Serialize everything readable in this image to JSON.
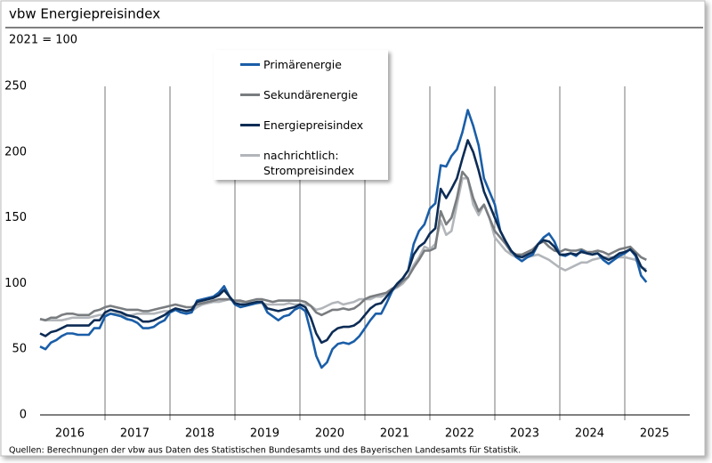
{
  "chart_data": {
    "type": "line",
    "title": "vbw Energiepreisindex",
    "subtitle": "2021 = 100",
    "source": "Quellen: Berechnungen der vbw aus Daten des Statistischen Bundesamts und des Bayerischen Landesamts für Statistik.",
    "categories": [
      null,
      null,
      null,
      null,
      null,
      null,
      "2016",
      null,
      null,
      null,
      null,
      null,
      null,
      null,
      null,
      null,
      null,
      null,
      "2017",
      null,
      null,
      null,
      null,
      null,
      null,
      null,
      null,
      null,
      null,
      null,
      "2018",
      null,
      null,
      null,
      null,
      null,
      null,
      null,
      null,
      null,
      null,
      null,
      "2019",
      null,
      null,
      null,
      null,
      null,
      null,
      null,
      null,
      null,
      null,
      null,
      "2020",
      null,
      null,
      null,
      null,
      null,
      null,
      null,
      null,
      null,
      null,
      null,
      "2021",
      null,
      null,
      null,
      null,
      null,
      null,
      null,
      null,
      null,
      null,
      null,
      "2022",
      null,
      null,
      null,
      null,
      null,
      null,
      null,
      null,
      null,
      null,
      null,
      "2023",
      null,
      null,
      null,
      null,
      null,
      null,
      null,
      null,
      null,
      null,
      null,
      "2024",
      null,
      null,
      null,
      null,
      null,
      null,
      null,
      null,
      null,
      null,
      null,
      "2025",
      null,
      null,
      null,
      null,
      null
    ],
    "ylim": [
      0,
      250
    ],
    "yticks": [
      0,
      50,
      100,
      150,
      200,
      250
    ],
    "series": [
      {
        "name": "Primärenergie",
        "color": "#1a5ea8",
        "values": [
          52,
          50,
          55,
          57,
          60,
          62,
          62,
          61,
          61,
          61,
          66,
          66,
          75,
          77,
          76,
          75,
          73,
          72,
          70,
          66,
          66,
          67,
          70,
          72,
          78,
          80,
          78,
          77,
          78,
          87,
          88,
          89,
          90,
          93,
          98,
          90,
          84,
          82,
          83,
          84,
          85,
          86,
          78,
          75,
          72,
          75,
          76,
          80,
          82,
          79,
          63,
          45,
          36,
          40,
          50,
          54,
          55,
          54,
          56,
          60,
          66,
          72,
          77,
          77,
          85,
          94,
          100,
          104,
          110,
          130,
          140,
          145,
          157,
          161,
          190,
          189,
          197,
          202,
          215,
          232,
          220,
          205,
          180,
          170,
          160,
          140,
          132,
          125,
          120,
          117,
          120,
          122,
          130,
          135,
          138,
          132,
          122,
          121,
          123,
          121,
          125,
          123,
          122,
          123,
          118,
          115,
          118,
          121,
          123,
          126,
          121,
          106,
          101,
          null,
          null,
          null,
          null,
          null,
          null,
          null
        ]
      },
      {
        "name": "Sekundärenergie",
        "color": "#7a7d80",
        "values": [
          73,
          72,
          74,
          74,
          76,
          77,
          77,
          76,
          76,
          76,
          79,
          80,
          82,
          83,
          82,
          81,
          80,
          80,
          80,
          79,
          79,
          80,
          81,
          82,
          83,
          84,
          83,
          82,
          82,
          84,
          85,
          86,
          87,
          88,
          88,
          88,
          87,
          87,
          86,
          87,
          88,
          88,
          87,
          86,
          87,
          87,
          87,
          87,
          87,
          86,
          83,
          78,
          76,
          78,
          80,
          80,
          81,
          80,
          81,
          84,
          88,
          90,
          91,
          92,
          93,
          96,
          98,
          102,
          105,
          112,
          118,
          125,
          125,
          127,
          155,
          145,
          150,
          165,
          185,
          180,
          165,
          155,
          160,
          150,
          140,
          135,
          130,
          124,
          122,
          122,
          124,
          126,
          130,
          132,
          128,
          125,
          124,
          126,
          125,
          125,
          126,
          124,
          124,
          125,
          124,
          122,
          124,
          126,
          127,
          128,
          124,
          120,
          118,
          null,
          null,
          null,
          null,
          null,
          null,
          null
        ]
      },
      {
        "name": "Energiepreisindex",
        "color": "#0c2c55",
        "values": [
          62,
          60,
          63,
          64,
          66,
          68,
          68,
          68,
          68,
          68,
          72,
          72,
          78,
          80,
          79,
          78,
          76,
          75,
          74,
          71,
          71,
          72,
          74,
          76,
          79,
          81,
          80,
          79,
          80,
          86,
          87,
          88,
          89,
          91,
          95,
          90,
          85,
          84,
          84,
          85,
          86,
          86,
          81,
          80,
          79,
          80,
          81,
          82,
          84,
          82,
          74,
          62,
          55,
          57,
          63,
          66,
          67,
          67,
          68,
          71,
          76,
          81,
          84,
          85,
          90,
          95,
          100,
          104,
          110,
          122,
          128,
          131,
          138,
          142,
          172,
          165,
          172,
          180,
          195,
          209,
          200,
          186,
          170,
          160,
          150,
          140,
          132,
          125,
          121,
          120,
          122,
          124,
          130,
          133,
          132,
          128,
          122,
          122,
          123,
          122,
          124,
          123,
          122,
          123,
          120,
          118,
          120,
          123,
          124,
          126,
          122,
          113,
          109,
          null,
          null,
          null,
          null,
          null,
          null,
          null
        ]
      },
      {
        "name": "nachrichtlich: Strompreisindex",
        "color": "#b2b6ba",
        "values": [
          73,
          72,
          72,
          72,
          72,
          73,
          74,
          74,
          74,
          74,
          75,
          76,
          76,
          77,
          77,
          76,
          75,
          76,
          77,
          77,
          77,
          77,
          78,
          79,
          79,
          80,
          80,
          79,
          79,
          82,
          84,
          85,
          86,
          86,
          87,
          88,
          87,
          86,
          85,
          85,
          85,
          85,
          84,
          84,
          84,
          84,
          85,
          84,
          84,
          84,
          83,
          80,
          81,
          83,
          85,
          86,
          84,
          85,
          86,
          88,
          88,
          88,
          90,
          90,
          92,
          95,
          97,
          100,
          105,
          114,
          120,
          128,
          126,
          130,
          148,
          137,
          140,
          160,
          180,
          180,
          160,
          152,
          160,
          150,
          135,
          130,
          125,
          122,
          120,
          120,
          120,
          121,
          122,
          120,
          118,
          115,
          112,
          110,
          112,
          114,
          116,
          116,
          118,
          119,
          120,
          120,
          120,
          120,
          120,
          119,
          118,
          112,
          111,
          null,
          null,
          null,
          null,
          null,
          null,
          null
        ]
      }
    ]
  }
}
